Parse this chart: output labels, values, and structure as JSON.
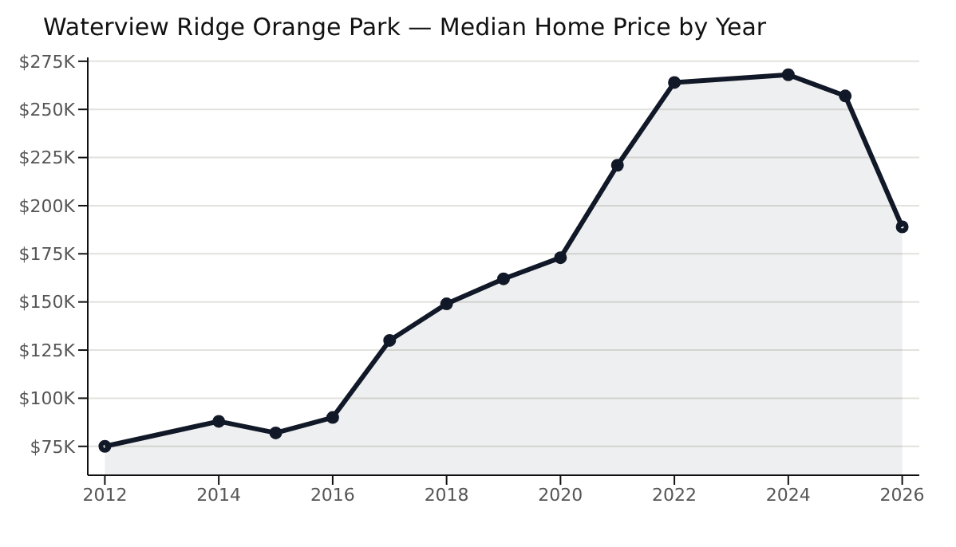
{
  "chart_data": {
    "type": "area",
    "title": "Waterview Ridge Orange Park — Median Home Price by Year",
    "x": [
      2012,
      2014,
      2015,
      2016,
      2017,
      2018,
      2019,
      2020,
      2021,
      2022,
      2024,
      2025,
      2026
    ],
    "series": [
      {
        "color": "#111827",
        "values": [
          75,
          88,
          82,
          90,
          130,
          149,
          162,
          173,
          221,
          264,
          268,
          257,
          189
        ]
      }
    ],
    "xlim": [
      2011.7,
      2026.3
    ],
    "xticks": [
      2012,
      2014,
      2016,
      2018,
      2020,
      2022,
      2024,
      2026
    ],
    "ylim": [
      60,
      277
    ],
    "yticks": [
      {
        "value": 75,
        "label": "$75K"
      },
      {
        "value": 100,
        "label": "$100K"
      },
      {
        "value": 125,
        "label": "$125K"
      },
      {
        "value": 150,
        "label": "$150K"
      },
      {
        "value": 175,
        "label": "$175K"
      },
      {
        "value": 200,
        "label": "$200K"
      },
      {
        "value": 225,
        "label": "$225K"
      },
      {
        "value": 250,
        "label": "$250K"
      },
      {
        "value": 275,
        "label": "$275K"
      }
    ],
    "grid": "y",
    "marker": "circle",
    "line_style": "solid"
  }
}
